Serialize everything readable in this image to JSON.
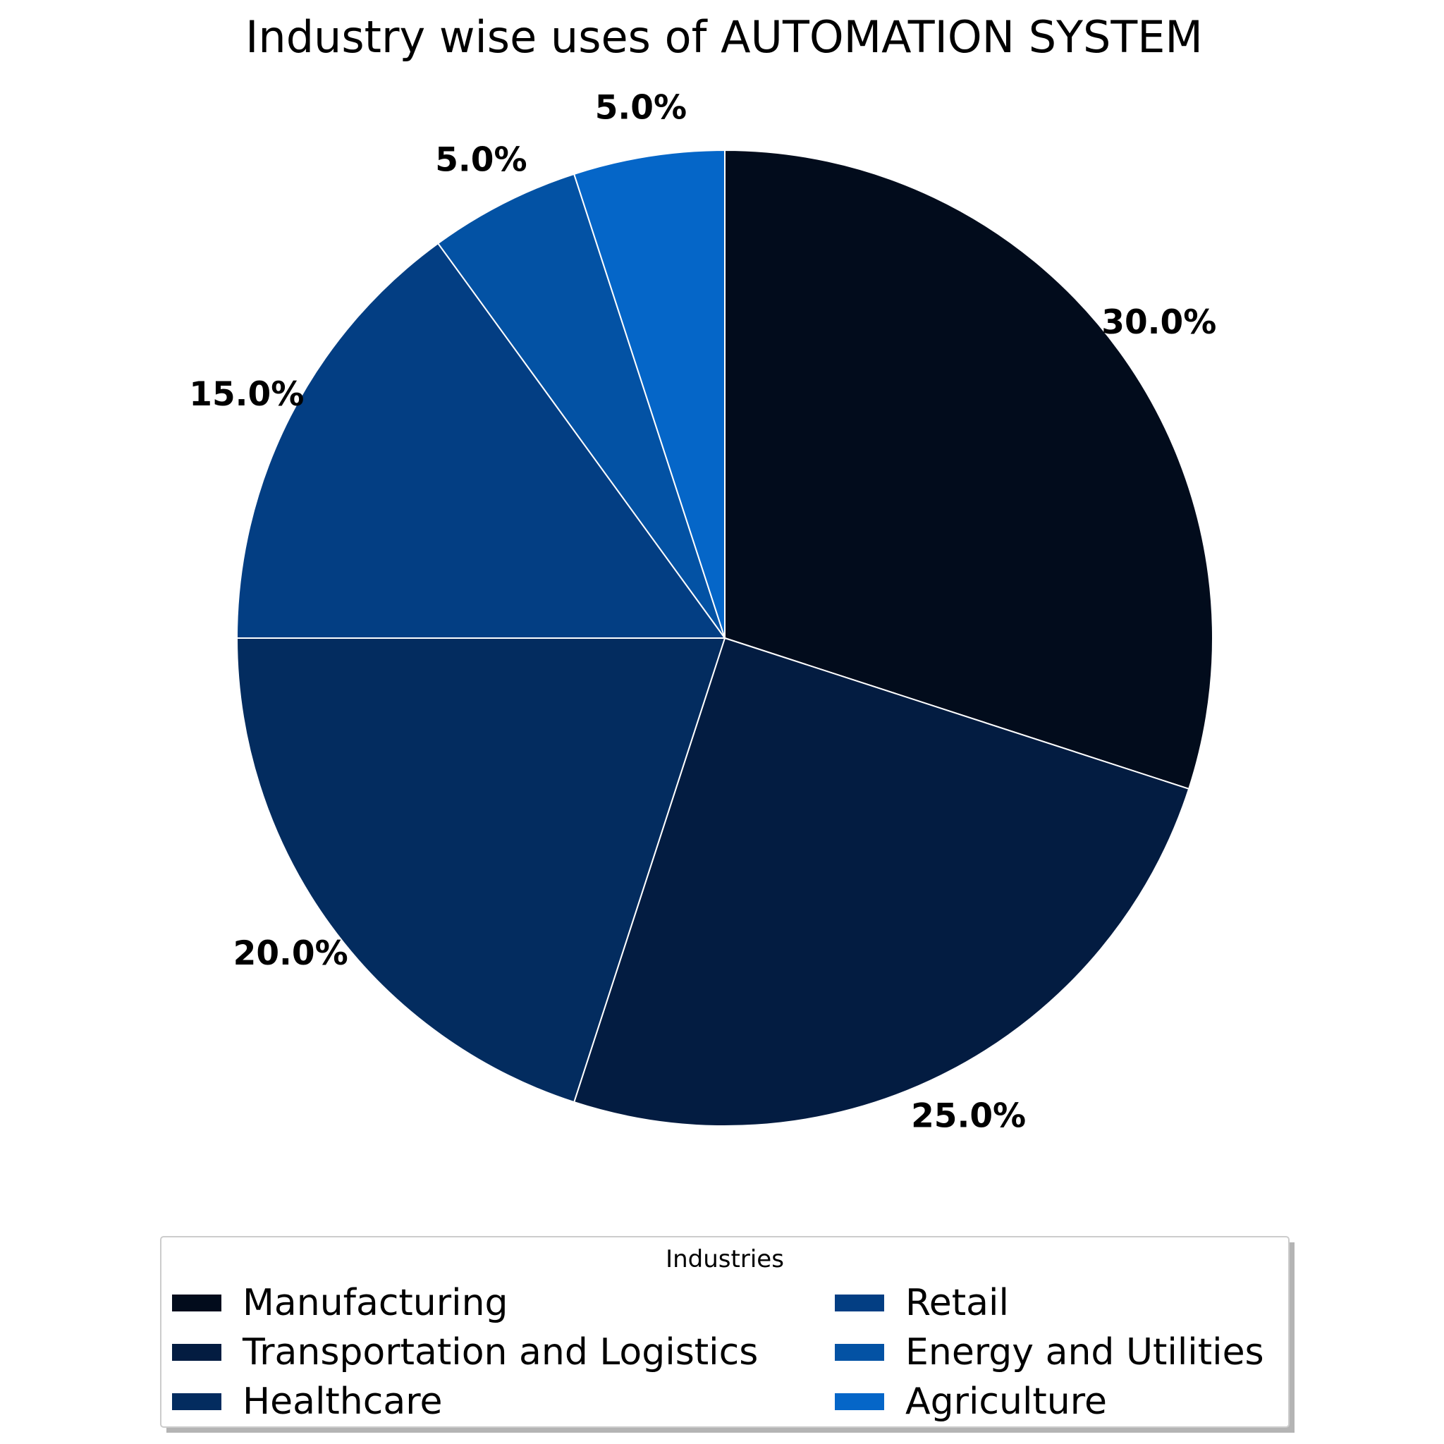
{
  "chart_data": {
    "type": "pie",
    "title": "Industry wise uses of AUTOMATION SYSTEM",
    "legend_title": "Industries",
    "legend_placement": "bottom-center",
    "start_angle_deg": 90,
    "direction": "clockwise",
    "slices": [
      {
        "label": "Manufacturing",
        "value": 30.0,
        "pct_label": "30.0%",
        "color": "#020c1c"
      },
      {
        "label": "Transportation and Logistics",
        "value": 25.0,
        "pct_label": "25.0%",
        "color": "#031c41"
      },
      {
        "label": "Healthcare",
        "value": 20.0,
        "pct_label": "20.0%",
        "color": "#032c5f"
      },
      {
        "label": "Retail",
        "value": 15.0,
        "pct_label": "15.0%",
        "color": "#033e83"
      },
      {
        "label": "Energy and Utilities",
        "value": 5.0,
        "pct_label": "5.0%",
        "color": "#0352a4"
      },
      {
        "label": "Agriculture",
        "value": 5.0,
        "pct_label": "5.0%",
        "color": "#0566c8"
      }
    ]
  }
}
